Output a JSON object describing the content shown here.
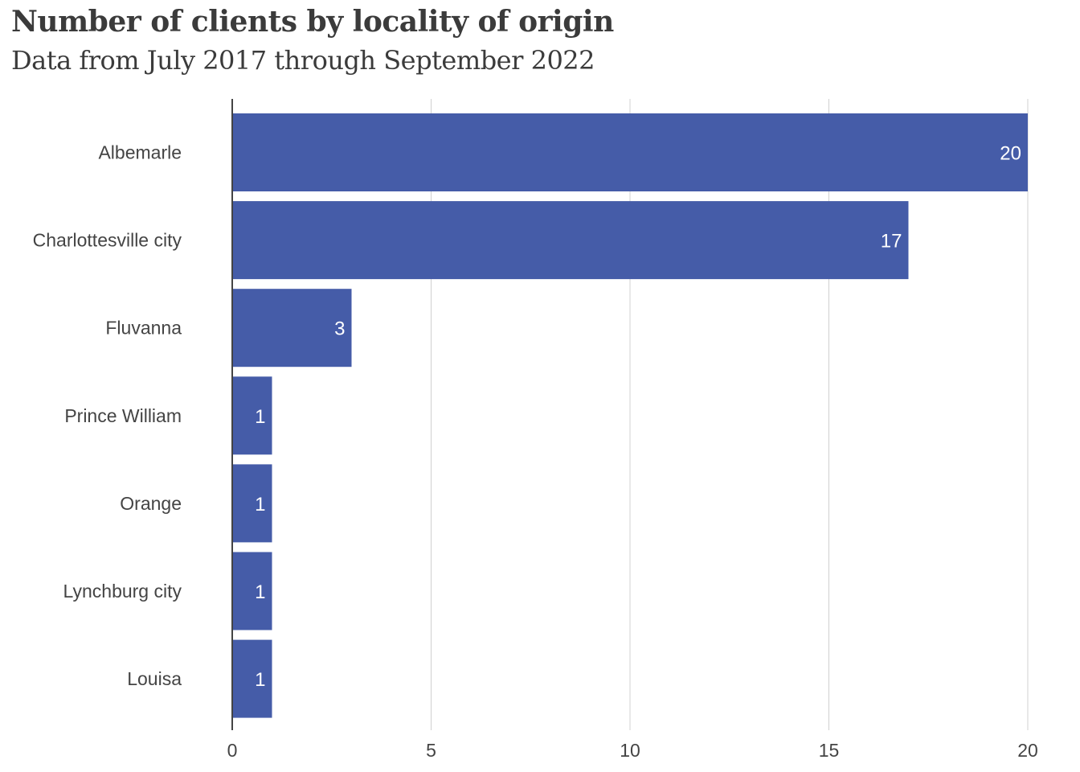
{
  "chart_data": {
    "type": "bar",
    "orientation": "horizontal",
    "title": "Number of clients by locality of origin",
    "subtitle": "Data from July 2017 through September 2022",
    "categories": [
      "Albemarle",
      "Charlottesville city",
      "Fluvanna",
      "Prince William",
      "Orange",
      "Lynchburg city",
      "Louisa"
    ],
    "values": [
      20,
      17,
      3,
      1,
      1,
      1,
      1
    ],
    "xlim": [
      0,
      20
    ],
    "xticks": [
      0,
      5,
      10,
      15,
      20
    ],
    "xlabel": "",
    "ylabel": "",
    "grid": "vertical",
    "bar_color": "#455ca8"
  }
}
